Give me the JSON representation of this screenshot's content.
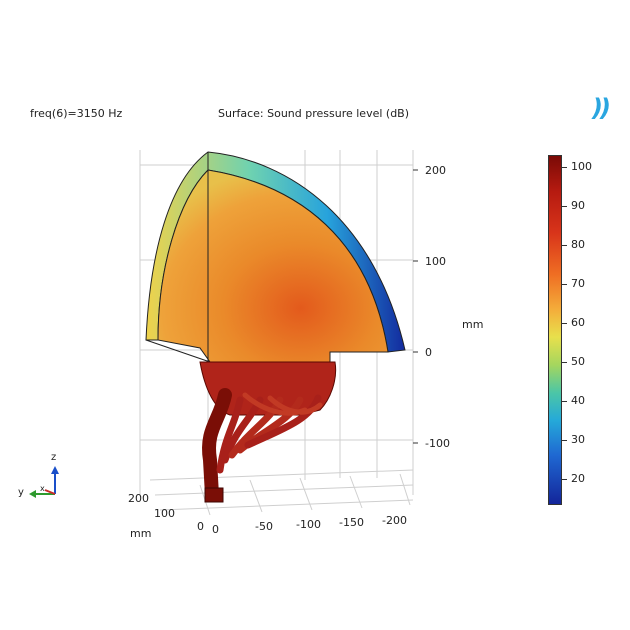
{
  "header": {
    "frequency_label": "freq(6)=3150 Hz",
    "surface_label": "Surface: Sound pressure level (dB)",
    "logo_text": "))"
  },
  "axes": {
    "z_ticks": [
      "200",
      "100",
      "0",
      "-100"
    ],
    "z_unit": "mm",
    "x_ticks": [
      "0",
      "-50",
      "-100",
      "-150",
      "-200"
    ],
    "y_ticks": [
      "200",
      "100",
      "0"
    ],
    "y_unit": "mm",
    "triad": {
      "z": "z",
      "y": "y",
      "x": "x"
    }
  },
  "colorbar": {
    "ticks": [
      "100",
      "90",
      "80",
      "70",
      "60",
      "50",
      "40",
      "30",
      "20"
    ],
    "colors": [
      "#7a0a06",
      "#d8341a",
      "#f4ac3a",
      "#e8e04c",
      "#4cc6a6",
      "#1f68d2",
      "#13259a"
    ]
  }
}
